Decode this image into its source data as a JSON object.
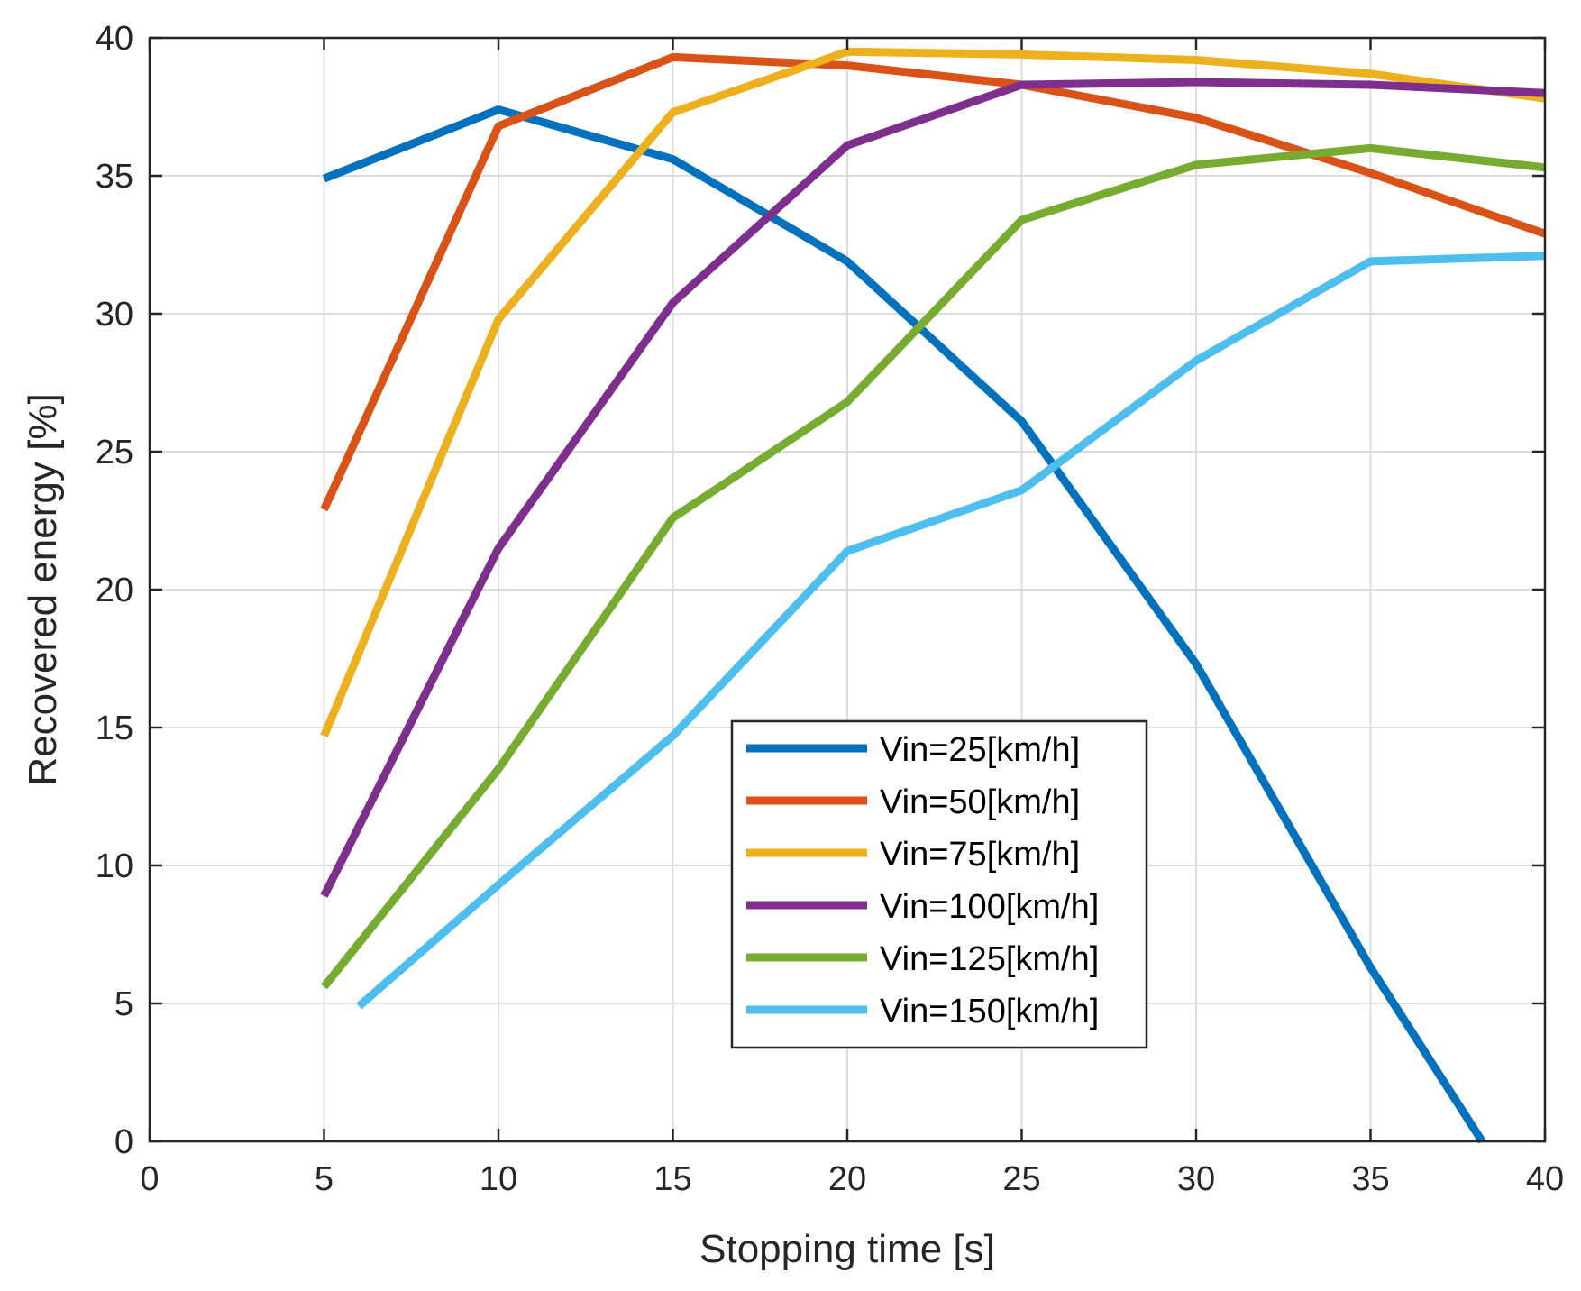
{
  "chart_data": {
    "type": "line",
    "xlabel": "Stopping time [s]",
    "ylabel": "Recovered energy [%]",
    "xlim": [
      0,
      40
    ],
    "ylim": [
      0,
      40
    ],
    "xticks": [
      0,
      5,
      10,
      15,
      20,
      25,
      30,
      35,
      40
    ],
    "yticks": [
      0,
      5,
      10,
      15,
      20,
      25,
      30,
      35,
      40
    ],
    "grid": true,
    "legend_position": "lower-middle",
    "series": [
      {
        "name": "Vin=25[km/h]",
        "color": "#0072BD",
        "x": [
          5,
          10,
          15,
          20,
          25,
          30,
          35,
          38.2
        ],
        "y": [
          34.9,
          37.4,
          35.6,
          31.9,
          26.1,
          17.3,
          6.3,
          0
        ]
      },
      {
        "name": "Vin=50[km/h]",
        "color": "#D95319",
        "x": [
          5,
          10,
          15,
          20,
          25,
          30,
          35,
          40
        ],
        "y": [
          22.9,
          36.8,
          39.3,
          39.0,
          38.3,
          37.1,
          35.1,
          32.9
        ]
      },
      {
        "name": "Vin=75[km/h]",
        "color": "#EDB120",
        "x": [
          5,
          10,
          15,
          20,
          25,
          30,
          35,
          40
        ],
        "y": [
          14.7,
          29.8,
          37.3,
          39.5,
          39.4,
          39.2,
          38.7,
          37.8
        ]
      },
      {
        "name": "Vin=100[km/h]",
        "color": "#7E2F8E",
        "x": [
          5,
          10,
          15,
          20,
          25,
          30,
          35,
          40
        ],
        "y": [
          8.9,
          21.5,
          30.4,
          36.1,
          38.3,
          38.4,
          38.3,
          38.0
        ]
      },
      {
        "name": "Vin=125[km/h]",
        "color": "#77AC30",
        "x": [
          5,
          10,
          15,
          20,
          25,
          30,
          35,
          40
        ],
        "y": [
          5.6,
          13.5,
          22.6,
          26.8,
          33.4,
          35.4,
          36.0,
          35.3
        ]
      },
      {
        "name": "Vin=150[km/h]",
        "color": "#4DBEEE",
        "x": [
          6,
          10,
          15,
          20,
          25,
          30,
          35,
          40
        ],
        "y": [
          4.9,
          9.3,
          14.7,
          21.4,
          23.6,
          28.3,
          31.9,
          32.1
        ]
      }
    ]
  }
}
